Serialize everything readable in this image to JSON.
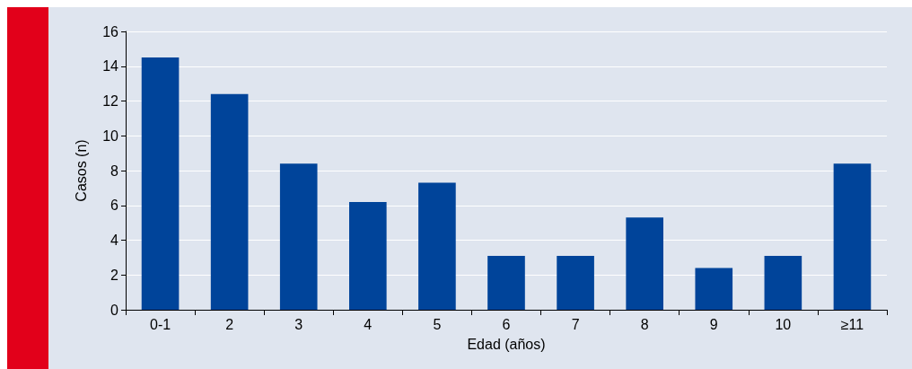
{
  "chart_data": {
    "type": "bar",
    "xlabel": "Edad (años)",
    "ylabel": "Casos (n)",
    "categories": [
      "0-1",
      "2",
      "3",
      "4",
      "5",
      "6",
      "7",
      "8",
      "9",
      "10",
      "≥11"
    ],
    "values": [
      14.5,
      12.4,
      8.4,
      6.2,
      7.3,
      3.1,
      3.1,
      5.3,
      2.4,
      3.1,
      8.4
    ],
    "color": "#00449a",
    "ylim": [
      0,
      16
    ],
    "yticks": [
      0,
      2,
      4,
      6,
      8,
      10,
      12,
      14,
      16
    ],
    "grid": "y"
  }
}
